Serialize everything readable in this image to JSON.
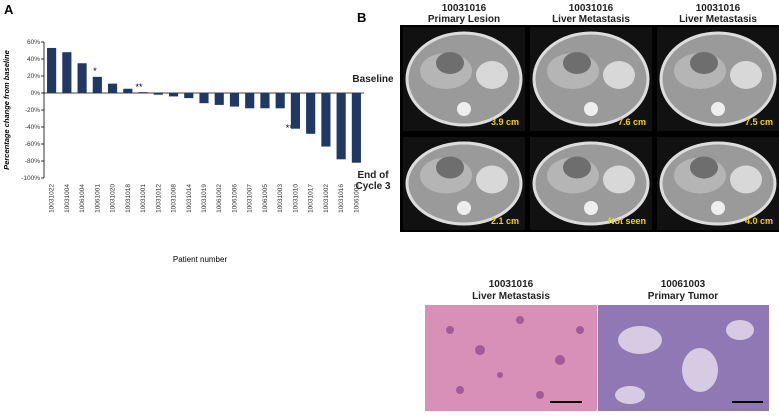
{
  "chart_data": {
    "type": "bar",
    "panel_label": "A",
    "ylabel": "Percentage change from baseline",
    "xlabel": "Patient number",
    "categories": [
      "10031022",
      "10031004",
      "10061004",
      "10061001",
      "10031020",
      "10031018",
      "10031001",
      "10031012",
      "10031008",
      "10031014",
      "10031019",
      "10061002",
      "10061006",
      "10031007",
      "10061005",
      "10031003",
      "10031010",
      "10031017",
      "10031002",
      "10031016",
      "10061003"
    ],
    "values": [
      53,
      48,
      35,
      19,
      11,
      5,
      1,
      -2,
      -4,
      -6,
      -12,
      -14,
      -16,
      -18,
      -18,
      -18,
      -42,
      -48,
      -63,
      -78,
      -82
    ],
    "color": "#1f3864",
    "ylim": [
      -100,
      60
    ],
    "yticks": [
      {
        "value": 60,
        "label": "60%"
      },
      {
        "value": 40,
        "label": "40%"
      },
      {
        "value": 20,
        "label": "20%"
      },
      {
        "value": 0,
        "label": "0%"
      },
      {
        "value": -20,
        "label": "-20%"
      },
      {
        "value": -40,
        "label": "-40%"
      },
      {
        "value": -60,
        "label": "-60%"
      },
      {
        "value": -80,
        "label": "-80%"
      },
      {
        "value": -100,
        "label": "-100%"
      }
    ],
    "annotations": [
      "*",
      "**",
      "***"
    ]
  },
  "panel_b": {
    "label": "B",
    "columns": [
      [
        "10031016",
        "Primary Lesion"
      ],
      [
        "10031016",
        "Liver Metastasis"
      ],
      [
        "10031016",
        "Liver Metastasis"
      ]
    ],
    "rows": [
      [
        "Baseline"
      ],
      [
        "End of",
        "Cycle 3"
      ]
    ],
    "measurements": [
      [
        "3.9 cm",
        "7.6 cm",
        "7.5 cm"
      ],
      [
        "2.1 cm",
        "Not seen",
        "4.0 cm"
      ]
    ],
    "histology": [
      [
        "10031016",
        "Liver Metastasis"
      ],
      [
        "10061003",
        "Primary Tumor"
      ]
    ]
  }
}
